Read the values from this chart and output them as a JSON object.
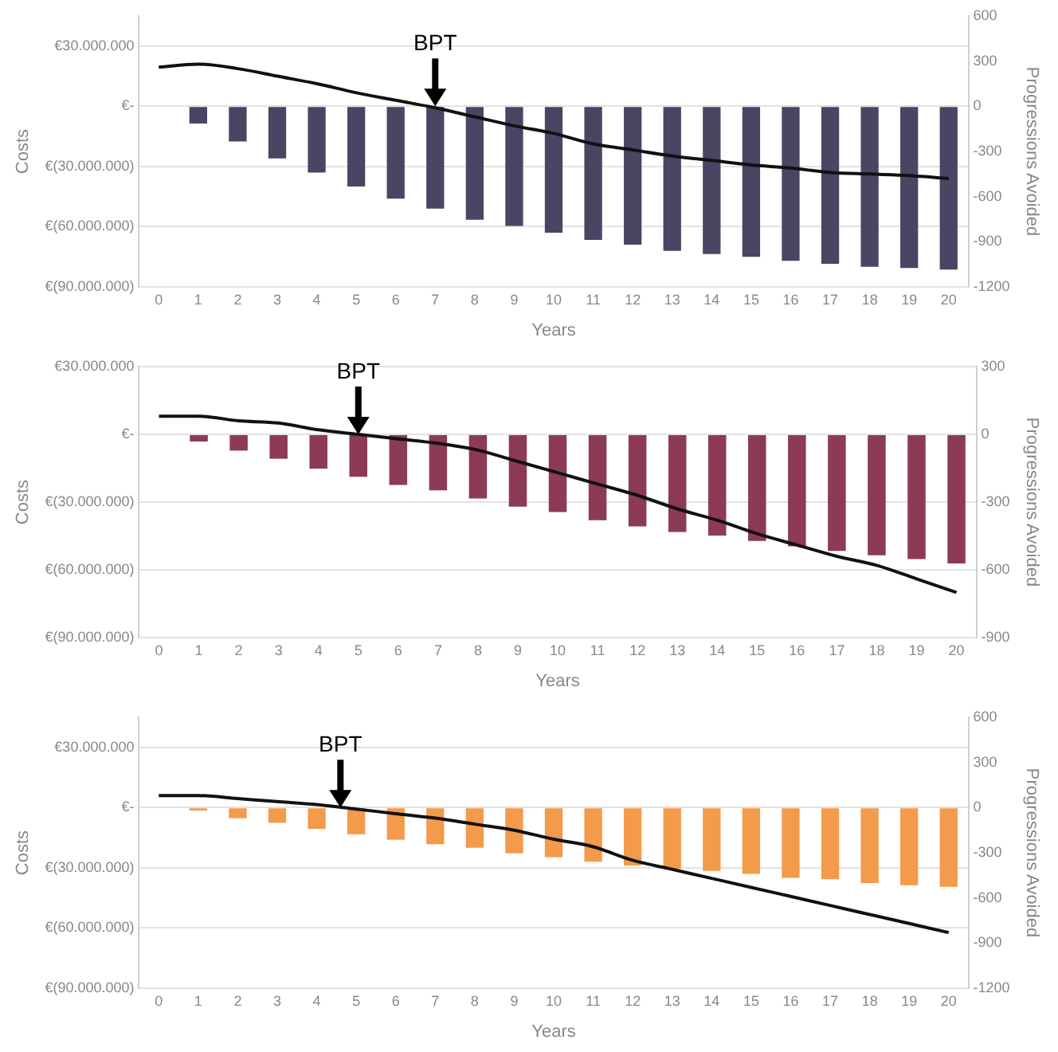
{
  "chart_data": [
    {
      "type": "bar",
      "xlabel": "Years",
      "ylabel": "Costs",
      "y2label": "Progressions Avoided",
      "x": [
        0,
        1,
        2,
        3,
        4,
        5,
        6,
        7,
        8,
        9,
        10,
        11,
        12,
        13,
        14,
        15,
        16,
        17,
        18,
        19,
        20
      ],
      "xlim": [
        -0.5,
        20.5
      ],
      "xticks": [
        0,
        1,
        2,
        3,
        4,
        5,
        6,
        7,
        8,
        9,
        10,
        11,
        12,
        13,
        14,
        15,
        16,
        17,
        18,
        19,
        20
      ],
      "ylim": [
        -90000000,
        45000000
      ],
      "yticks": [
        {
          "value": 30000000,
          "label": "€30.000.000"
        },
        {
          "value": 0,
          "label": "€-"
        },
        {
          "value": -30000000,
          "label": "€(30.000.000)"
        },
        {
          "value": -60000000,
          "label": "€(60.000.000)"
        },
        {
          "value": -90000000,
          "label": "€(90.000.000)"
        }
      ],
      "y2lim": [
        -1200,
        600
      ],
      "y2ticks": [
        600,
        300,
        0,
        -300,
        -600,
        -900,
        -1200
      ],
      "grid": "y",
      "legend": false,
      "series": [
        {
          "axis": "y",
          "color": "#4a4563",
          "values": [
            0,
            -8600000,
            -17500000,
            -26000000,
            -33000000,
            -40000000,
            -46000000,
            -51000000,
            -56500000,
            -59600000,
            -63000000,
            -66600000,
            -69000000,
            -72000000,
            -73600000,
            -75000000,
            -77000000,
            -78500000,
            -80000000,
            -80600000,
            -81400000
          ]
        },
        {
          "type": "line",
          "axis": "y2",
          "color": "#111111",
          "values": [
            260,
            280,
            250,
            200,
            150,
            90,
            40,
            -10,
            -70,
            -130,
            -180,
            -250,
            -290,
            -330,
            -360,
            -390,
            -410,
            -440,
            -450,
            -460,
            -480
          ]
        }
      ],
      "annotations": [
        {
          "text": "BPT",
          "x": 7,
          "y": 0
        }
      ]
    },
    {
      "type": "bar",
      "xlabel": "Years",
      "ylabel": "Costs",
      "y2label": "Progressions Avoided",
      "x": [
        0,
        1,
        2,
        3,
        4,
        5,
        6,
        7,
        8,
        9,
        10,
        11,
        12,
        13,
        14,
        15,
        16,
        17,
        18,
        19,
        20
      ],
      "xlim": [
        -0.5,
        20.5
      ],
      "xticks": [
        0,
        1,
        2,
        3,
        4,
        5,
        6,
        7,
        8,
        9,
        10,
        11,
        12,
        13,
        14,
        15,
        16,
        17,
        18,
        19,
        20
      ],
      "ylim": [
        -90000000,
        30000000
      ],
      "yticks": [
        {
          "value": 30000000,
          "label": "€30.000.000"
        },
        {
          "value": 0,
          "label": "€-"
        },
        {
          "value": -30000000,
          "label": "€(30.000.000)"
        },
        {
          "value": -60000000,
          "label": "€(60.000.000)"
        },
        {
          "value": -90000000,
          "label": "€(90.000.000)"
        }
      ],
      "y2lim": [
        -900,
        300
      ],
      "y2ticks": [
        300,
        0,
        -300,
        -600,
        -900
      ],
      "grid": "y",
      "legend": false,
      "series": [
        {
          "axis": "y",
          "color": "#8c3a57",
          "values": [
            0,
            -3200000,
            -7200000,
            -10800000,
            -15200000,
            -18800000,
            -22400000,
            -24800000,
            -28400000,
            -32000000,
            -34400000,
            -38000000,
            -40800000,
            -43200000,
            -44800000,
            -47200000,
            -49600000,
            -51600000,
            -53600000,
            -55200000,
            -57200000
          ]
        },
        {
          "type": "line",
          "axis": "y2",
          "color": "#111111",
          "values": [
            80,
            80,
            60,
            50,
            20,
            0,
            -20,
            -40,
            -70,
            -120,
            -170,
            -220,
            -270,
            -330,
            -380,
            -440,
            -490,
            -540,
            -580,
            -640,
            -700
          ]
        }
      ],
      "annotations": [
        {
          "text": "BPT",
          "x": 5,
          "y": 0
        }
      ]
    },
    {
      "type": "bar",
      "xlabel": "Years",
      "ylabel": "Costs",
      "y2label": "Progressions Avoided",
      "x": [
        0,
        1,
        2,
        3,
        4,
        5,
        6,
        7,
        8,
        9,
        10,
        11,
        12,
        13,
        14,
        15,
        16,
        17,
        18,
        19,
        20
      ],
      "xlim": [
        -0.5,
        20.5
      ],
      "xticks": [
        0,
        1,
        2,
        3,
        4,
        5,
        6,
        7,
        8,
        9,
        10,
        11,
        12,
        13,
        14,
        15,
        16,
        17,
        18,
        19,
        20
      ],
      "ylim": [
        -90000000,
        45000000
      ],
      "yticks": [
        {
          "value": 30000000,
          "label": "€30.000.000"
        },
        {
          "value": 0,
          "label": "€-"
        },
        {
          "value": -30000000,
          "label": "€(30.000.000)"
        },
        {
          "value": -60000000,
          "label": "€(60.000.000)"
        },
        {
          "value": -90000000,
          "label": "€(90.000.000)"
        }
      ],
      "y2lim": [
        -1200,
        600
      ],
      "y2ticks": [
        600,
        300,
        0,
        -300,
        -600,
        -900,
        -1200
      ],
      "grid": "y",
      "legend": false,
      "series": [
        {
          "axis": "y",
          "color": "#f39a4b",
          "values": [
            0,
            -1500000,
            -5300000,
            -7600000,
            -10600000,
            -13300000,
            -16000000,
            -18200000,
            -20000000,
            -22800000,
            -24700000,
            -27000000,
            -28900000,
            -30400000,
            -31500000,
            -33000000,
            -35000000,
            -35700000,
            -37600000,
            -38700000,
            -39500000
          ]
        },
        {
          "type": "line",
          "axis": "y2",
          "color": "#111111",
          "values": [
            80,
            80,
            60,
            40,
            20,
            -10,
            -40,
            -70,
            -110,
            -150,
            -210,
            -260,
            -350,
            -410,
            -470,
            -530,
            -590,
            -650,
            -710,
            -770,
            -830
          ]
        }
      ],
      "annotations": [
        {
          "text": "BPT",
          "x": 4.6,
          "y": 0
        }
      ]
    }
  ]
}
